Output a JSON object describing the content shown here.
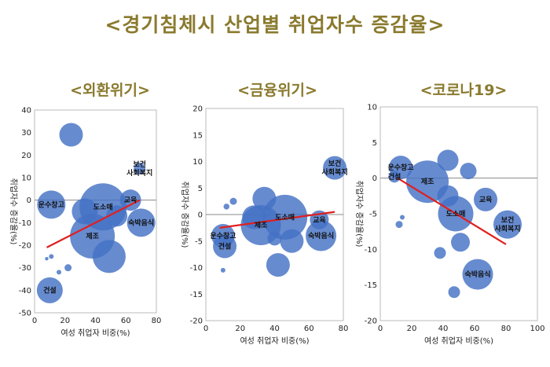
{
  "title": "<경기침체시 산업별 취업자수 증감율>",
  "colors": {
    "title": "#8a7a2e",
    "bubble": "#4472C4",
    "trend": "#e02020",
    "zero": "#888888"
  },
  "chart_data": [
    {
      "type": "scatter",
      "title": "<외환위기>",
      "xlabel": "여성 취업자 비중(%)",
      "ylabel": "취업자수 증감율(%)",
      "xlim": [
        0,
        80
      ],
      "ylim": [
        -50,
        40
      ],
      "xticks": [
        0,
        20,
        40,
        60,
        80
      ],
      "yticks": [
        -50,
        -40,
        -30,
        -20,
        -10,
        0,
        10,
        20,
        30,
        40
      ],
      "trend": [
        [
          8,
          -21
        ],
        [
          69,
          0
        ]
      ],
      "points": [
        {
          "x": 24,
          "y": 29,
          "r": 1.0,
          "label": ""
        },
        {
          "x": 11,
          "y": -2,
          "r": 1.2,
          "label": "운수창고"
        },
        {
          "x": 33,
          "y": -5,
          "r": 1.1,
          "label": ""
        },
        {
          "x": 38,
          "y": -16,
          "r": 1.9,
          "label": "제조"
        },
        {
          "x": 45,
          "y": -3,
          "r": 2.0,
          "label": "도소매"
        },
        {
          "x": 49,
          "y": -25,
          "r": 1.4,
          "label": ""
        },
        {
          "x": 54,
          "y": -7,
          "r": 0.9,
          "label": ""
        },
        {
          "x": 63,
          "y": 0,
          "r": 0.9,
          "label": "교육"
        },
        {
          "x": 69,
          "y": 14,
          "r": 0.5,
          "label": "보건\n사회복지"
        },
        {
          "x": 70,
          "y": -10,
          "r": 1.2,
          "label": "숙박음식"
        },
        {
          "x": 10,
          "y": -40,
          "r": 1.1,
          "label": "건설"
        },
        {
          "x": 11,
          "y": -25,
          "r": 0.2,
          "label": ""
        },
        {
          "x": 16,
          "y": -32,
          "r": 0.2,
          "label": ""
        },
        {
          "x": 22,
          "y": -30,
          "r": 0.3,
          "label": ""
        },
        {
          "x": 8,
          "y": -26,
          "r": 0.15,
          "label": ""
        }
      ]
    },
    {
      "type": "scatter",
      "title": "<금융위기>",
      "xlabel": "여성 취업자 비중(%)",
      "ylabel": "취업자수 증감율(%)",
      "xlim": [
        0,
        80
      ],
      "ylim": [
        -20,
        20
      ],
      "xticks": [
        0,
        20,
        40,
        60,
        80
      ],
      "yticks": [
        -20,
        -15,
        -10,
        -5,
        0,
        5,
        10,
        15,
        20
      ],
      "trend": [
        [
          8,
          -2.5
        ],
        [
          75,
          0.5
        ]
      ],
      "points": [
        {
          "x": 75,
          "y": 8.8,
          "r": 1.0,
          "label": "보건\n사회복지"
        },
        {
          "x": 12,
          "y": 1.5,
          "r": 0.25,
          "label": ""
        },
        {
          "x": 16,
          "y": 2.5,
          "r": 0.3,
          "label": ""
        },
        {
          "x": 10,
          "y": -4,
          "r": 1.0,
          "label": "운수창고"
        },
        {
          "x": 11,
          "y": -6,
          "r": 1.0,
          "label": "건설"
        },
        {
          "x": 10,
          "y": -10.5,
          "r": 0.2,
          "label": ""
        },
        {
          "x": 28,
          "y": -0.5,
          "r": 1.0,
          "label": ""
        },
        {
          "x": 34,
          "y": 3,
          "r": 1.0,
          "label": ""
        },
        {
          "x": 32,
          "y": -2,
          "r": 1.7,
          "label": "제조"
        },
        {
          "x": 46,
          "y": -0.5,
          "r": 1.9,
          "label": "도소매"
        },
        {
          "x": 42,
          "y": -9.5,
          "r": 1.0,
          "label": ""
        },
        {
          "x": 50,
          "y": -5,
          "r": 1.0,
          "label": ""
        },
        {
          "x": 40,
          "y": -4.5,
          "r": 0.6,
          "label": ""
        },
        {
          "x": 66,
          "y": -1,
          "r": 0.8,
          "label": "교육"
        },
        {
          "x": 67,
          "y": -4,
          "r": 1.3,
          "label": "숙박음식"
        }
      ]
    },
    {
      "type": "scatter",
      "title": "<코로나19>",
      "xlabel": "여성 취업자 비중(%)",
      "ylabel": "취업자수 증감율(%)",
      "xlim": [
        0,
        100
      ],
      "ylim": [
        -20,
        10
      ],
      "xticks": [
        0,
        20,
        40,
        60,
        80,
        100
      ],
      "yticks": [
        -20,
        -15,
        -10,
        -5,
        0,
        5,
        10
      ],
      "trend": [
        [
          11,
          0
        ],
        [
          80,
          -9.3
        ]
      ],
      "points": [
        {
          "x": 13,
          "y": 1.5,
          "r": 1.0,
          "label": "운수창고"
        },
        {
          "x": 9,
          "y": 0.2,
          "r": 0.5,
          "label": "건설"
        },
        {
          "x": 12,
          "y": -6.5,
          "r": 0.3,
          "label": ""
        },
        {
          "x": 14,
          "y": -5.5,
          "r": 0.2,
          "label": ""
        },
        {
          "x": 30,
          "y": -0.5,
          "r": 1.8,
          "label": "제조"
        },
        {
          "x": 43,
          "y": 2.5,
          "r": 0.9,
          "label": ""
        },
        {
          "x": 56,
          "y": 1,
          "r": 0.7,
          "label": ""
        },
        {
          "x": 43,
          "y": -2.5,
          "r": 0.9,
          "label": ""
        },
        {
          "x": 48,
          "y": -5,
          "r": 1.5,
          "label": "도소매"
        },
        {
          "x": 51,
          "y": -9,
          "r": 0.8,
          "label": ""
        },
        {
          "x": 38,
          "y": -10.5,
          "r": 0.5,
          "label": ""
        },
        {
          "x": 67,
          "y": -3,
          "r": 1.0,
          "label": "교육"
        },
        {
          "x": 81,
          "y": -6.5,
          "r": 1.2,
          "label": "보건\n사회복지"
        },
        {
          "x": 62,
          "y": -13.5,
          "r": 1.3,
          "label": "숙박음식"
        },
        {
          "x": 47,
          "y": -16,
          "r": 0.5,
          "label": ""
        }
      ]
    }
  ]
}
